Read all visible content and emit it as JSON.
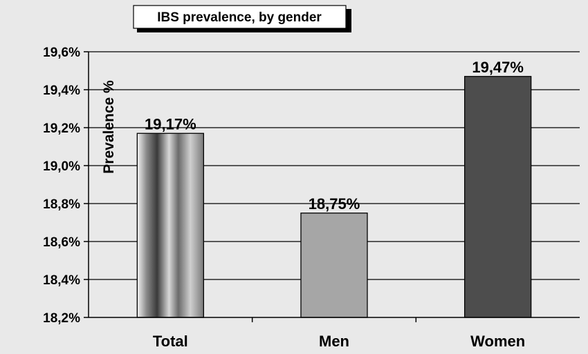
{
  "chart_data": {
    "type": "bar",
    "title": "IBS prevalence, by gender",
    "ylabel": "Prevalence %",
    "xlabel": "",
    "categories": [
      "Total",
      "Men",
      "Women"
    ],
    "values": [
      19.17,
      18.75,
      19.47
    ],
    "data_labels": [
      "19,17%",
      "18,75%",
      "19,47%"
    ],
    "ylim": [
      18.2,
      19.6
    ],
    "yticks": [
      18.2,
      18.4,
      18.6,
      18.8,
      19.0,
      19.2,
      19.4,
      19.6
    ],
    "ytick_labels": [
      "18,2%",
      "18,4%",
      "18,6%",
      "18,8%",
      "19,0%",
      "19,2%",
      "19,4%",
      "19,6%"
    ],
    "grid": true,
    "legend": "none",
    "bar_colors": [
      "gradient-gray",
      "#a6a6a6",
      "#4d4d4d"
    ],
    "background_color": "#e9e9e9"
  }
}
